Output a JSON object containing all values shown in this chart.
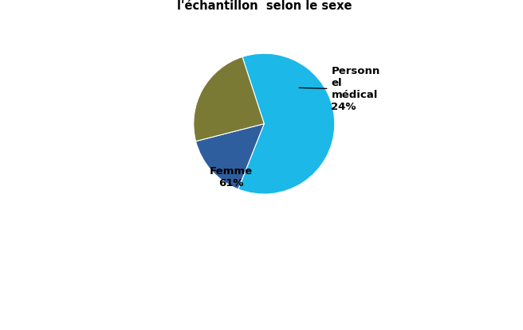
{
  "title_line2": "l'échantillon  selon le sexe",
  "slices": [
    61,
    15,
    24
  ],
  "colors": [
    "#1BB8E8",
    "#2E5E9E",
    "#7A7A35"
  ],
  "bg_color": "#FFFFFF",
  "box_bg": "#FFFFFF",
  "title_fontsize": 10.5,
  "label_fontsize": 9.5,
  "startangle": 108,
  "femme_label": "Femme\n61%",
  "medical_label": "Personn\nel\nmédical\n24%"
}
